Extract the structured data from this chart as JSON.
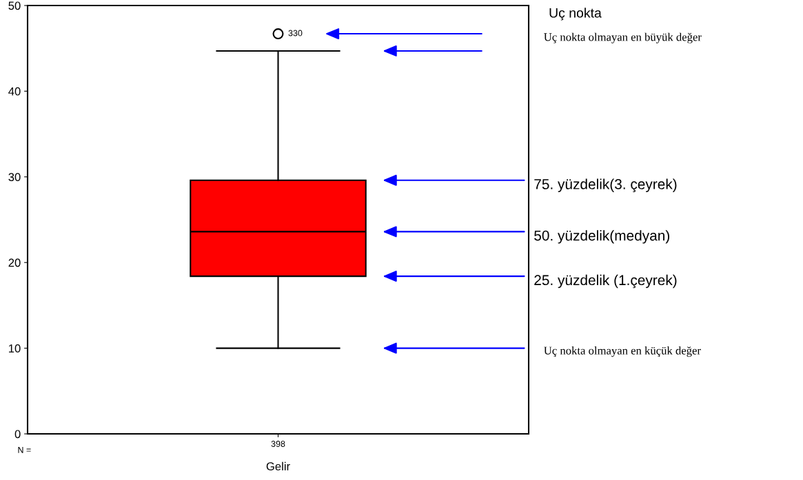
{
  "chart_data": {
    "type": "box",
    "categories": [
      "398"
    ],
    "xlabel": "Gelir",
    "ylim": [
      0,
      50
    ],
    "yticks": [
      0,
      10,
      20,
      30,
      40,
      50
    ],
    "series": [
      {
        "color": "#ff0000",
        "boxes": [
          {
            "low": 10.0,
            "q1": 18.4,
            "median": 23.6,
            "q3": 29.6,
            "high": 44.7,
            "outliers": [
              46.7
            ]
          }
        ]
      }
    ],
    "annotations": [
      "Uç nokta",
      "Uç nokta olmayan en büyük değer",
      "75. yüzdelik(3. çeyrek)",
      "50. yüzdelik(medyan)",
      "25. yüzdelik (1.çeyrek)",
      "Uç nokta olmayan en küçük değer",
      "330",
      "N ="
    ]
  }
}
